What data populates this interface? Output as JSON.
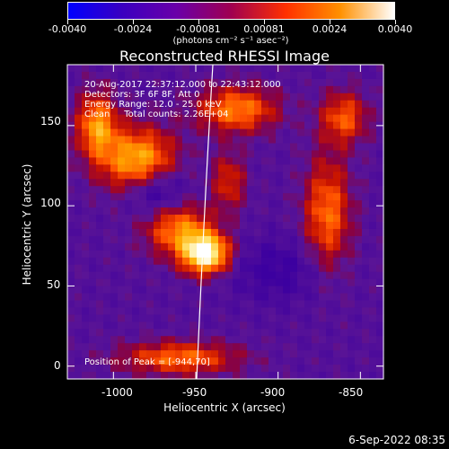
{
  "colorbar": {
    "tick_labels": [
      "-0.0040",
      "-0.0024",
      "-0.00081",
      "0.00081",
      "0.0024",
      "0.0040"
    ],
    "units_text": "(photons cm⁻² s⁻¹ asec⁻²)",
    "colors": [
      "#0000ff",
      "#3b00c0",
      "#6a00a8",
      "#a00050",
      "#ff3000",
      "#ff9000",
      "#ffffff"
    ]
  },
  "plot": {
    "title": "Reconstructed RHESSI Image",
    "info_lines": [
      "20-Aug-2017 22:37:12.000 to 22:43:12.000",
      "Detectors: 3F 6F 8F, Att 0",
      "Energy Range: 12.0 - 25.0 keV",
      "Clean     Total counts: 2.26E+04"
    ],
    "peak_text": "Position of Peak = [-944,70]",
    "xlabel": "Heliocentric X (arcsec)",
    "ylabel": "Heliocentric Y (arcsec)",
    "x_ticks": [
      "-1000",
      "-950",
      "-900",
      "-850"
    ],
    "y_ticks": [
      "0",
      "50",
      "100",
      "150"
    ],
    "x_range": [
      -1028,
      -836
    ],
    "y_range": [
      -8,
      188
    ],
    "peak": [
      -944,
      70
    ],
    "limb_color": "#ffffff"
  },
  "footer": {
    "date": "6-Sep-2022 08:35"
  }
}
